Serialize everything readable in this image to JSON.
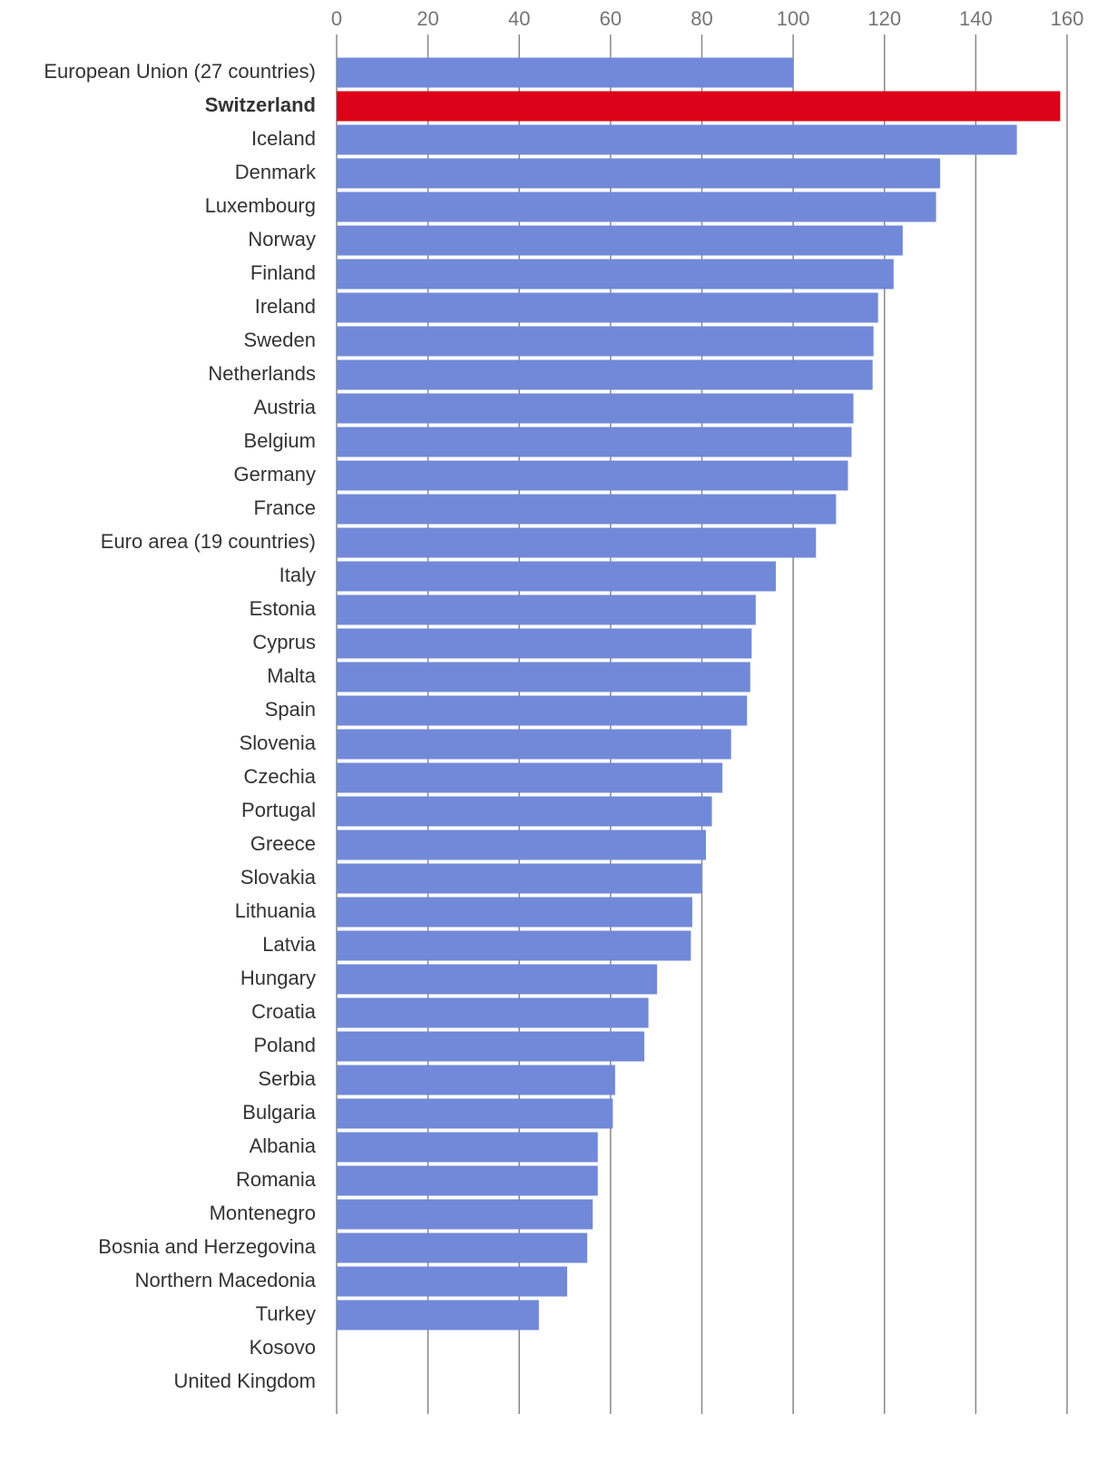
{
  "chart_data": {
    "type": "bar",
    "orientation": "horizontal",
    "title": "",
    "xlabel": "",
    "ylabel": "",
    "xlim": [
      0,
      160
    ],
    "x_ticks": [
      0,
      20,
      40,
      60,
      80,
      100,
      120,
      140,
      160
    ],
    "tick_position": "top",
    "grid": true,
    "highlight": "Switzerland",
    "colors": {
      "default": "#7189d8",
      "highlight": "#dc0018",
      "grid": "#888888",
      "tick_text": "#757575",
      "label_text": "#333333"
    },
    "categories": [
      "European Union (27 countries)",
      "Switzerland",
      "Iceland",
      "Denmark",
      "Luxembourg",
      "Norway",
      "Finland",
      "Ireland",
      "Sweden",
      "Netherlands",
      "Austria",
      "Belgium",
      "Germany",
      "France",
      "Euro area (19 countries)",
      "Italy",
      "Estonia",
      "Cyprus",
      "Malta",
      "Spain",
      "Slovenia",
      "Czechia",
      "Portugal",
      "Greece",
      "Slovakia",
      "Lithuania",
      "Latvia",
      "Hungary",
      "Croatia",
      "Poland",
      "Serbia",
      "Bulgaria",
      "Albania",
      "Romania",
      "Montenegro",
      "Bosnia and Herzegovina",
      "Northern Macedonia",
      "Turkey",
      "Kosovo",
      "United Kingdom"
    ],
    "values": [
      100,
      158.5,
      149,
      132.2,
      131.3,
      124,
      122,
      118.6,
      117.6,
      117.4,
      113.2,
      112.8,
      112,
      109.4,
      105,
      96.2,
      91.8,
      90.9,
      90.6,
      89.9,
      86.4,
      84.5,
      82.2,
      80.9,
      80.1,
      77.9,
      77.6,
      70.2,
      68.3,
      67.4,
      61,
      60.5,
      57.2,
      57.2,
      56.1,
      54.9,
      50.5,
      44.3,
      null,
      null
    ]
  }
}
